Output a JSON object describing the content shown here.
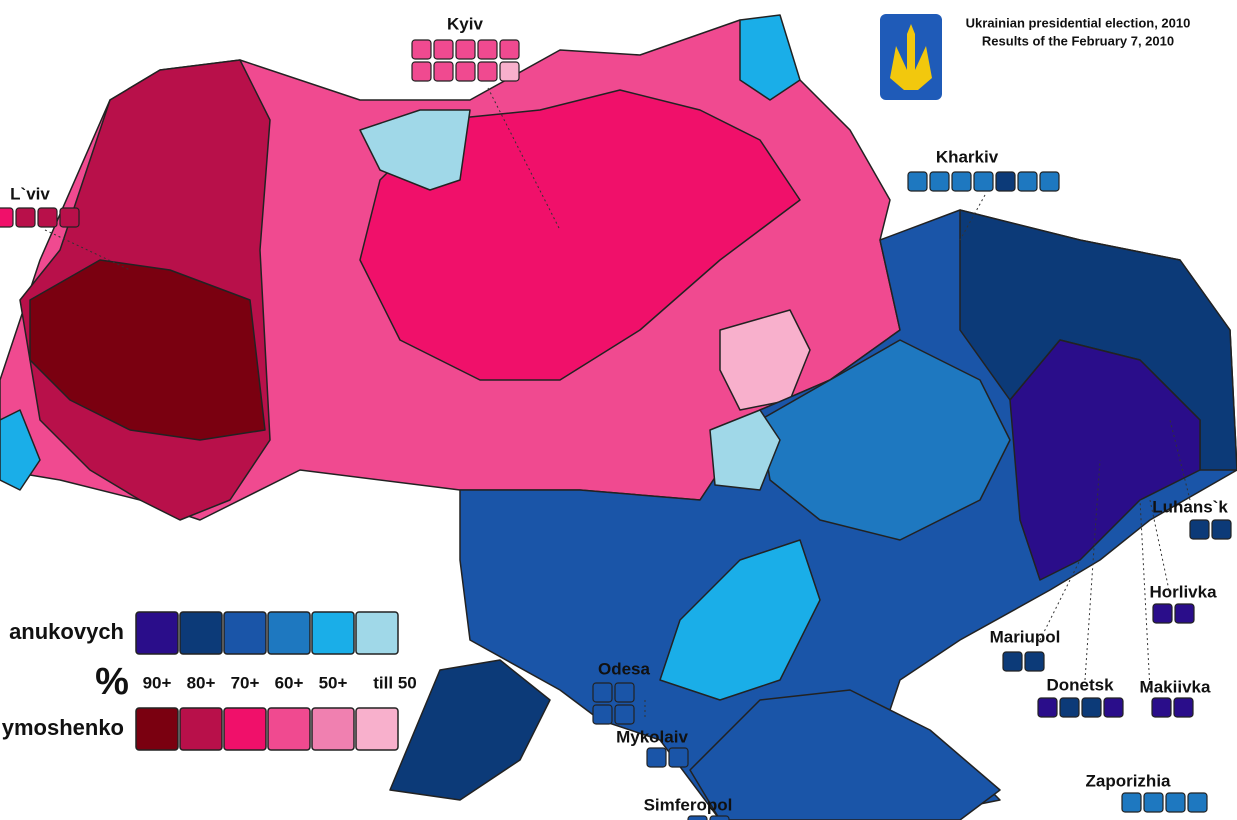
{
  "title": {
    "line1": "Ukrainian presidential election, 2010",
    "line2": "Results of the February 7, 2010"
  },
  "legend": {
    "candidates": [
      {
        "name": "anukovych",
        "colors": [
          "#2a0d8a",
          "#0c3a78",
          "#1a55a8",
          "#1e78c0",
          "#1aaee8",
          "#a0d8e8"
        ]
      },
      {
        "name": "ymoshenko",
        "colors": [
          "#7a0010",
          "#b8104a",
          "#f0106a",
          "#f04a90",
          "#f080b0",
          "#f8b0cc"
        ]
      }
    ],
    "percent_sign": "%",
    "thresholds": [
      "90+",
      "80+",
      "70+",
      "60+",
      "50+",
      "till 50"
    ]
  },
  "cities": [
    {
      "label": "Kyiv",
      "boxes": [
        "#f04a90",
        "#f04a90",
        "#f04a90",
        "#f04a90",
        "#f04a90",
        "#f04a90",
        "#f04a90",
        "#f04a90",
        "#f04a90",
        "#f8b0cc"
      ]
    },
    {
      "label": "L`viv",
      "boxes": [
        "#f0106a",
        "#b8104a",
        "#b8104a",
        "#b8104a"
      ]
    },
    {
      "label": "Kharkiv",
      "boxes": [
        "#1e78c0",
        "#1e78c0",
        "#1e78c0",
        "#1e78c0",
        "#0c3a78",
        "#1e78c0",
        "#1e78c0"
      ]
    },
    {
      "label": "Luhans`k",
      "boxes": [
        "#0c3a78",
        "#0c3a78"
      ]
    },
    {
      "label": "Horlivka",
      "boxes": [
        "#2a0d8a",
        "#2a0d8a"
      ]
    },
    {
      "label": "Mariupol",
      "boxes": [
        "#0c3a78",
        "#0c3a78"
      ]
    },
    {
      "label": "Donetsk",
      "boxes": [
        "#2a0d8a",
        "#0c3a78",
        "#0c3a78",
        "#2a0d8a"
      ]
    },
    {
      "label": "Makiivka",
      "boxes": [
        "#2a0d8a",
        "#2a0d8a"
      ]
    },
    {
      "label": "Odesa",
      "boxes": [
        "#1a55a8",
        "#1a55a8",
        "#1a55a8",
        "#1a55a8"
      ]
    },
    {
      "label": "Mykolaiv",
      "boxes": [
        "#1a55a8",
        "#1a55a8"
      ]
    },
    {
      "label": "Simferopol",
      "boxes": [
        "#1a55a8",
        "#1a55a8"
      ]
    },
    {
      "label": "Zaporizhia",
      "boxes": [
        "#1e78c0",
        "#1e78c0",
        "#1e78c0",
        "#1e78c0"
      ]
    }
  ]
}
